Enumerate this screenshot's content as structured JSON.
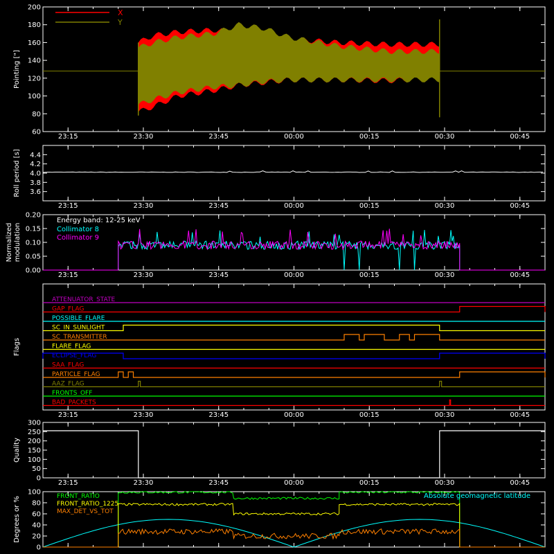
{
  "time_ticks": [
    "23:15",
    "23:30",
    "23:45",
    "00:00",
    "00:15",
    "00:30",
    "00:45"
  ],
  "colors": {
    "background": "#000000",
    "axis": "#ffffff",
    "red": "#ff0000",
    "olive": "#808000",
    "cyan": "#00ffff",
    "magenta": "#ff00ff",
    "white": "#ffffff",
    "green": "#00ff00",
    "yellow": "#ffff00",
    "orange": "#ff8000",
    "blue": "#0000ff",
    "purple": "#c000c0"
  },
  "chart_data": [
    {
      "type": "area",
      "ylabel": "Pointing [\"]",
      "ylim": [
        60,
        200
      ],
      "yticks": [
        "60",
        "80",
        "100",
        "120",
        "140",
        "160",
        "180",
        "200"
      ],
      "legend_placement": "top-left",
      "series": [
        {
          "name": "X",
          "color": "#ff0000"
        },
        {
          "name": "Y",
          "color": "#808000"
        }
      ],
      "baseline": 128,
      "data_start": "23:29",
      "data_end": "00:29",
      "x_envelope_upper": [
        [
          0,
          160
        ],
        [
          3,
          168
        ],
        [
          8,
          172
        ],
        [
          15,
          174
        ],
        [
          20,
          172
        ],
        [
          25,
          168
        ],
        [
          30,
          164
        ],
        [
          40,
          160
        ],
        [
          50,
          158
        ],
        [
          60,
          158
        ]
      ],
      "x_envelope_lower": [
        [
          0,
          82
        ],
        [
          3,
          88
        ],
        [
          8,
          100
        ],
        [
          15,
          106
        ],
        [
          20,
          112
        ],
        [
          25,
          115
        ],
        [
          30,
          118
        ],
        [
          40,
          118
        ],
        [
          50,
          117
        ],
        [
          60,
          120
        ]
      ],
      "y_envelope_upper": [
        [
          0,
          154
        ],
        [
          3,
          160
        ],
        [
          8,
          166
        ],
        [
          15,
          170
        ],
        [
          20,
          180
        ],
        [
          25,
          176
        ],
        [
          30,
          166
        ],
        [
          40,
          156
        ],
        [
          50,
          150
        ],
        [
          60,
          150
        ]
      ],
      "y_envelope_lower": [
        [
          0,
          90
        ],
        [
          3,
          96
        ],
        [
          8,
          104
        ],
        [
          15,
          110
        ],
        [
          20,
          112
        ],
        [
          25,
          116
        ],
        [
          30,
          118
        ],
        [
          40,
          118
        ],
        [
          50,
          118
        ],
        [
          60,
          118
        ]
      ]
    },
    {
      "type": "line",
      "ylabel": "Roll period [s]",
      "ylim": [
        3.4,
        4.6
      ],
      "yticks": [
        "3.6",
        "3.8",
        "4.0",
        "4.2",
        "4.4"
      ],
      "series": [
        {
          "value": 4.02,
          "color": "#ffffff"
        }
      ]
    },
    {
      "type": "line",
      "ylabel": "Normalized modulation",
      "ylim": [
        0.0,
        0.2
      ],
      "yticks": [
        "0.00",
        "0.05",
        "0.10",
        "0.15",
        "0.20"
      ],
      "annotation": "Energy band: 12-25 keV",
      "legend_placement": "top-left",
      "series": [
        {
          "name": "Collimator 8",
          "color": "#00ffff",
          "mean": 0.09
        },
        {
          "name": "Collimator 9",
          "color": "#ff00ff",
          "mean": 0.09
        }
      ],
      "data_start": "23:25",
      "data_end": "00:33",
      "dropouts_collimator_8": [
        "00:10",
        "00:13",
        "00:21",
        "00:24"
      ]
    },
    {
      "type": "line",
      "ylabel": "Flags",
      "flags": [
        {
          "label": "ATTENUATOR_STATE",
          "color": "#c000c0",
          "segments": []
        },
        {
          "label": "GAP_FLAG",
          "color": "#ff0000",
          "segments": [
            [
              "00:33",
              "00:50"
            ]
          ]
        },
        {
          "label": "POSSIBLE_FLARE",
          "color": "#00ffff",
          "segments": []
        },
        {
          "label": "SC_IN_SUNLIGHT",
          "color": "#ffff00",
          "segments": [
            [
              "23:26",
              "00:29"
            ]
          ]
        },
        {
          "label": "SC_TRANSMITTER",
          "color": "#ff8000",
          "segments": [
            [
              "00:10",
              "00:13"
            ],
            [
              "00:14",
              "00:18"
            ],
            [
              "00:21",
              "00:23"
            ],
            [
              "00:24",
              "00:29"
            ]
          ]
        },
        {
          "label": "FLARE_FLAG",
          "color": "#ffff00",
          "segments": []
        },
        {
          "label": "ECLIPSE_FLAG",
          "color": "#0000ff",
          "segments": [
            [
              "23:10",
              "23:26"
            ],
            [
              "00:29",
              "00:50"
            ]
          ]
        },
        {
          "label": "SAA_FLAG",
          "color": "#ff0000",
          "segments": []
        },
        {
          "label": "PARTICLE_FLAG",
          "color": "#ff8000",
          "segments": [
            [
              "23:25",
              "23:26"
            ],
            [
              "23:27",
              "23:28"
            ],
            [
              "00:33",
              "00:50"
            ]
          ]
        },
        {
          "label": "AAZ_FLAG",
          "color": "#808000",
          "segments": [
            [
              "23:29",
              "23:29.4"
            ],
            [
              "00:29",
              "00:29.4"
            ]
          ]
        },
        {
          "label": "FRONTS_OFF",
          "color": "#00ff00",
          "segments": []
        },
        {
          "label": "BAD_PACKETS",
          "color": "#ff0000",
          "segments": [
            [
              "00:31",
              "00:31.2"
            ]
          ]
        }
      ]
    },
    {
      "type": "line",
      "ylabel": "Quality",
      "ylim": [
        0,
        300
      ],
      "yticks": [
        "0",
        "50",
        "100",
        "150",
        "200",
        "250",
        "300"
      ],
      "series": [
        {
          "color": "#ffffff",
          "points": [
            [
              "23:10",
              255
            ],
            [
              "23:29",
              255
            ],
            [
              "23:29",
              0
            ],
            [
              "00:29",
              0
            ],
            [
              "00:29",
              255
            ],
            [
              "00:50",
              255
            ]
          ]
        }
      ]
    },
    {
      "type": "line",
      "ylabel": "Degrees or %",
      "ylim": [
        0,
        100
      ],
      "yticks": [
        "0",
        "20",
        "40",
        "60",
        "80",
        "100"
      ],
      "legend_placement": "top-left",
      "series": [
        {
          "name": "FRONT_RATIO",
          "color": "#00ff00",
          "segments": [
            [
              "23:25",
              "23:48",
              99
            ],
            [
              "23:48",
              "00:09",
              88
            ],
            [
              "00:09",
              "00:33",
              99
            ]
          ]
        },
        {
          "name": "FRONT_RATIO_1225",
          "color": "#ffff00",
          "segments": [
            [
              "23:25",
              "23:48",
              77
            ],
            [
              "23:48",
              "00:09",
              60
            ],
            [
              "00:09",
              "00:33",
              77
            ]
          ]
        },
        {
          "name": "MAX_DET_VS_TOT",
          "color": "#ff8000",
          "segments": [
            [
              "23:25",
              "23:48",
              28
            ],
            [
              "23:48",
              "00:09",
              20
            ],
            [
              "00:09",
              "00:33",
              28
            ]
          ]
        },
        {
          "name": "Absolute geomagnetic latitude",
          "color": "#00ffff",
          "peaks": [
            "23:35",
            "00:27"
          ],
          "troughs": [
            "00:00",
            "00:50"
          ],
          "max": 50
        }
      ]
    }
  ]
}
